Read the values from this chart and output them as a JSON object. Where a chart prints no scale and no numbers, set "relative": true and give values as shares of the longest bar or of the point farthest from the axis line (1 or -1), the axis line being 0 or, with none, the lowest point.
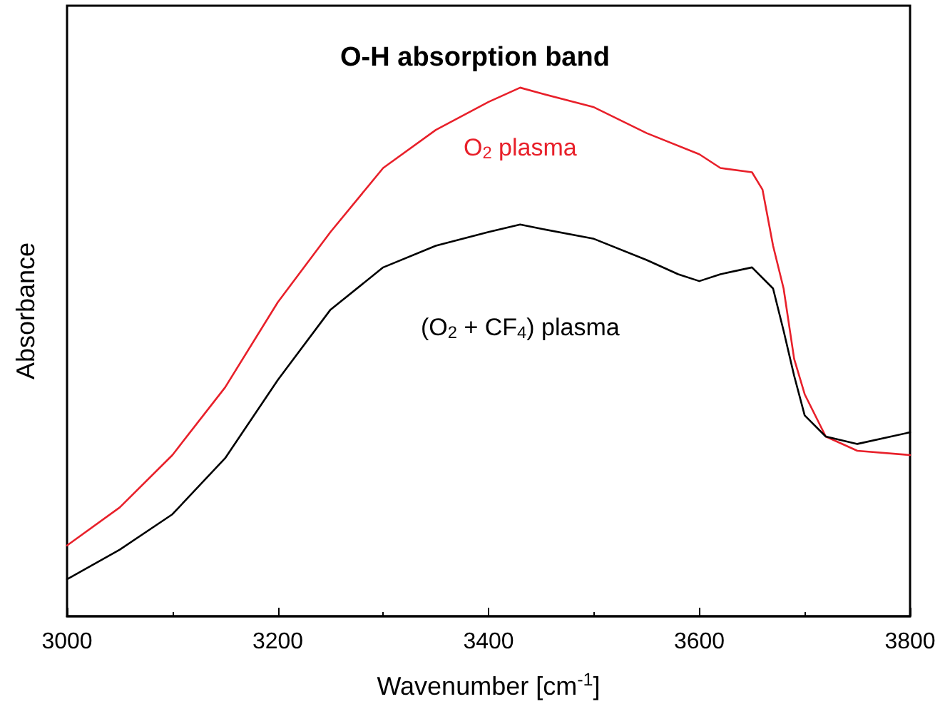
{
  "chart_data": {
    "type": "line",
    "title": "O-H absorption band",
    "xlabel": "Wavenumber [cm$^{-1}$]",
    "ylabel": "Absorbance",
    "relative": true,
    "xlim": [
      3000,
      3800
    ],
    "xticks": [
      3000,
      3200,
      3400,
      3600,
      3800
    ],
    "grid": false,
    "legend": false,
    "marker": "none",
    "line_style": "solid",
    "series": [
      {
        "name": "O$_{2}$ plasma",
        "color": "#e8202a",
        "x": [
          3000,
          3050,
          3100,
          3150,
          3200,
          3250,
          3300,
          3350,
          3400,
          3430,
          3450,
          3500,
          3550,
          3600,
          3620,
          3650,
          3660,
          3670,
          3680,
          3690,
          3700,
          3720,
          3750,
          3800
        ],
        "values": [
          0.134,
          0.206,
          0.305,
          0.433,
          0.594,
          0.727,
          0.848,
          0.92,
          0.973,
          1.0,
          0.989,
          0.963,
          0.914,
          0.874,
          0.848,
          0.84,
          0.807,
          0.701,
          0.62,
          0.487,
          0.42,
          0.34,
          0.313,
          0.305
        ]
      },
      {
        "name": "(O$_{2}$ + CF$_{4}$) plasma",
        "color": "#000000",
        "x": [
          3000,
          3050,
          3100,
          3150,
          3200,
          3250,
          3300,
          3350,
          3400,
          3430,
          3450,
          3500,
          3550,
          3580,
          3600,
          3620,
          3650,
          3670,
          3680,
          3690,
          3700,
          3720,
          3750,
          3800
        ],
        "values": [
          0.07,
          0.126,
          0.193,
          0.299,
          0.447,
          0.58,
          0.66,
          0.701,
          0.727,
          0.741,
          0.733,
          0.714,
          0.674,
          0.647,
          0.634,
          0.647,
          0.66,
          0.62,
          0.54,
          0.455,
          0.38,
          0.34,
          0.326,
          0.348
        ]
      }
    ]
  }
}
